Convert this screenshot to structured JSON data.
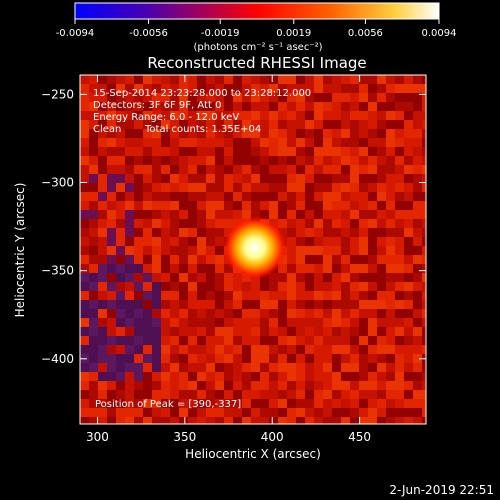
{
  "chart_data": {
    "type": "heatmap",
    "title": "Reconstructed RHESSI Image",
    "xlabel": "Heliocentric X (arcsec)",
    "ylabel": "Heliocentric Y (arcsec)",
    "xlim": [
      290,
      488
    ],
    "ylim": [
      -437,
      -239
    ],
    "x_ticks": [
      300,
      350,
      400,
      450
    ],
    "y_ticks": [
      -250,
      -300,
      -350,
      -400
    ],
    "colorbar": {
      "min": -0.0094,
      "max": 0.0094,
      "ticks": [
        -0.0094,
        -0.0056,
        -0.0019,
        0.0019,
        0.0056,
        0.0094
      ],
      "tick_labels": [
        "-0.0094",
        "-0.0056",
        "-0.0019",
        "0.0019",
        "0.0056",
        "0.0094"
      ],
      "unit_label": "(photons cm⁻² s⁻¹ asec⁻²)",
      "colormap": [
        "#0000ff",
        "#5a00a0",
        "#ff0000",
        "#ffa000",
        "#ffff80",
        "#ffffff"
      ]
    },
    "source": {
      "x": 390,
      "y": -337,
      "peak": 0.0094
    },
    "annotations": {
      "date_range": "15-Sep-2014 23:23:28.000 to 23:28:12.000",
      "detectors": "Detectors: 3F 6F 9F, Att 0",
      "energy": "Energy Range: 6.0 - 12.0 keV",
      "method": "Clean",
      "counts": "Total counts: 1.35E+04",
      "peak": "Position of Peak = [390,-337]"
    },
    "footer_date": "2-Jun-2019 22:51"
  }
}
